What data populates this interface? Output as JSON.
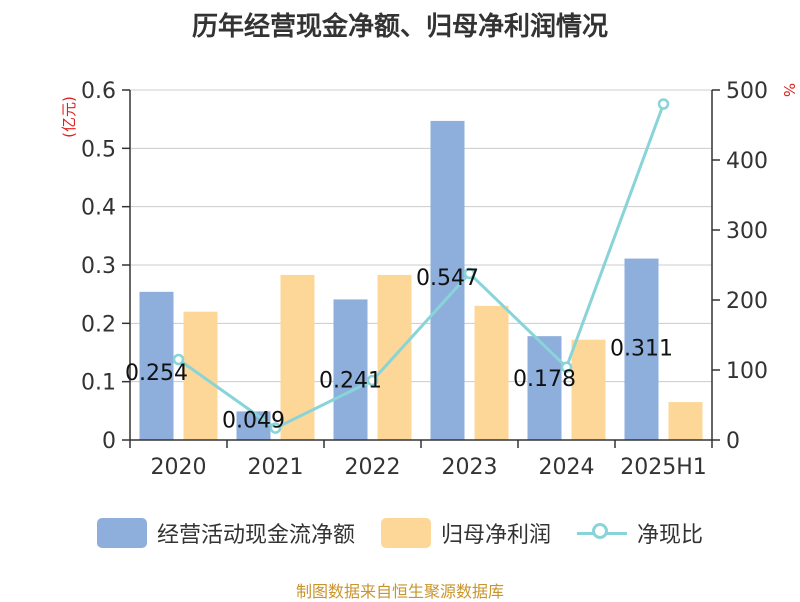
{
  "title": "历年经营现金净额、归母净利润情况",
  "source": "制图数据来自恒生聚源数据库",
  "chart_data": {
    "type": "bar",
    "categories": [
      "2020",
      "2021",
      "2022",
      "2023",
      "2024",
      "2025H1"
    ],
    "y_left": {
      "label": "(亿元)",
      "ticks": [
        "0",
        "0.1",
        "0.2",
        "0.3",
        "0.4",
        "0.5",
        "0.6"
      ],
      "range": [
        0,
        0.6
      ]
    },
    "y_right": {
      "label": "%",
      "ticks": [
        "0",
        "100",
        "200",
        "300",
        "400",
        "500"
      ],
      "range": [
        0,
        500
      ]
    },
    "grid": true,
    "legend_position": "bottom",
    "series": [
      {
        "name": "经营活动现金流净额",
        "kind": "bar",
        "axis": "left",
        "color": "#8eaedc",
        "values": [
          0.254,
          0.049,
          0.241,
          0.547,
          0.178,
          0.311
        ],
        "labels": [
          "0.254",
          "0.049",
          "0.241",
          "0.547",
          "0.178",
          "0.311"
        ]
      },
      {
        "name": "归母净利润",
        "kind": "bar",
        "axis": "left",
        "color": "#fdd797",
        "values": [
          0.22,
          0.283,
          0.283,
          0.23,
          0.172,
          0.065
        ]
      },
      {
        "name": "净现比",
        "kind": "line",
        "axis": "right",
        "color": "#88d4d8",
        "values": [
          115,
          17,
          85,
          238,
          104,
          480
        ]
      }
    ]
  }
}
